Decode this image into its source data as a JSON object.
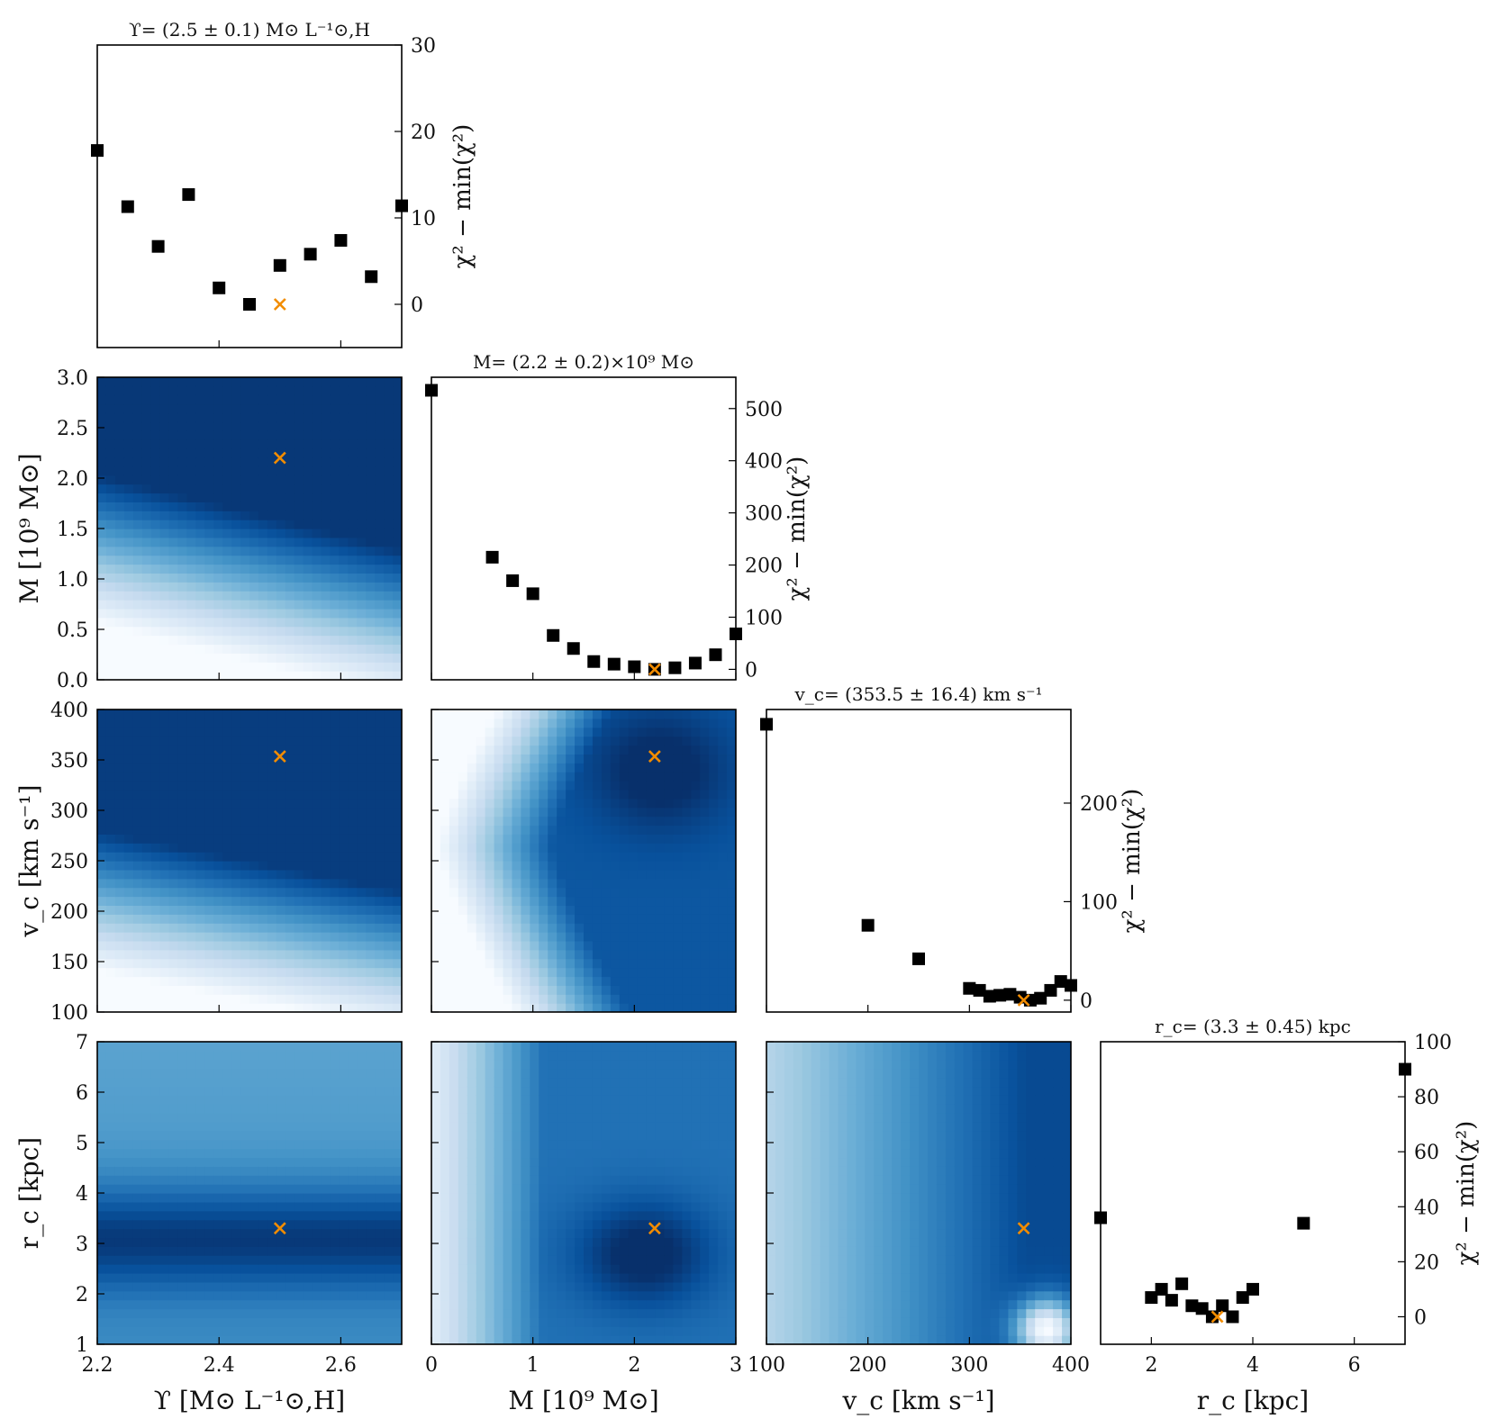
{
  "chart_data": {
    "type": "corner-plot",
    "colors": {
      "marker": "#000000",
      "best_fit": "#f28c00",
      "contour_dark": "#08306b",
      "contour_light": "#f7fbff"
    },
    "params": [
      {
        "id": "ups",
        "label": "ϒ [M⊙ L⁻¹⊙,H]",
        "range": [
          2.2,
          2.7
        ],
        "ticks": [
          2.2,
          2.4,
          2.6
        ],
        "best": 2.5
      },
      {
        "id": "M",
        "label": "M [10⁹ M⊙]",
        "range": [
          0,
          3
        ],
        "ticks": [
          0,
          1,
          2,
          3
        ],
        "yticks": [
          0.0,
          0.5,
          1.0,
          1.5,
          2.0,
          2.5,
          3.0
        ],
        "best": 2.2
      },
      {
        "id": "vc",
        "label": "v_c [km s⁻¹]",
        "range": [
          100,
          400
        ],
        "ticks": [
          100,
          200,
          300,
          400
        ],
        "yticks": [
          100,
          150,
          200,
          250,
          300,
          350,
          400
        ],
        "best": 353.5
      },
      {
        "id": "rc",
        "label": "r_c [kpc]",
        "range": [
          1,
          7
        ],
        "ticks": [
          2,
          4,
          6
        ],
        "yticks": [
          1,
          2,
          3,
          4,
          5,
          6,
          7
        ],
        "best": 3.3
      }
    ],
    "diagonals": [
      {
        "title": "ϒ= (2.5 ± 0.1) M⊙ L⁻¹⊙,H",
        "ylabel": "χ² − min(χ²)",
        "ylim": [
          -5,
          30
        ],
        "yticks": [
          0,
          10,
          20,
          30
        ],
        "x": [
          2.2,
          2.25,
          2.3,
          2.35,
          2.4,
          2.45,
          2.5,
          2.55,
          2.6,
          2.65,
          2.7
        ],
        "y": [
          17.8,
          11.3,
          6.7,
          12.7,
          1.9,
          0.0,
          4.5,
          5.8,
          7.4,
          3.2,
          11.4
        ]
      },
      {
        "title": "M= (2.2 ± 0.2)×10⁹ M⊙",
        "ylabel": "χ² − min(χ²)",
        "ylim": [
          -20,
          560
        ],
        "yticks": [
          0,
          100,
          200,
          300,
          400,
          500
        ],
        "x": [
          0,
          0.6,
          0.8,
          1.0,
          1.2,
          1.4,
          1.6,
          1.8,
          2.0,
          2.2,
          2.4,
          2.6,
          2.8,
          3.0
        ],
        "y": [
          535,
          215,
          170,
          145,
          65,
          40,
          15,
          10,
          5,
          0,
          3,
          12,
          28,
          68
        ]
      },
      {
        "title": "v_c= (353.5 ± 16.4) km s⁻¹",
        "ylabel": "χ² − min(χ²)",
        "ylim": [
          -12,
          295
        ],
        "yticks": [
          0,
          100,
          200
        ],
        "x": [
          100,
          200,
          250,
          300,
          310,
          320,
          330,
          340,
          350,
          360,
          370,
          380,
          390,
          400
        ],
        "y": [
          280,
          76,
          42,
          12,
          10,
          4,
          5,
          6,
          3,
          0,
          2,
          10,
          19,
          15
        ]
      },
      {
        "title": "r_c= (3.3 ± 0.45) kpc",
        "ylabel": "χ² − min(χ²)",
        "ylim": [
          -10,
          100
        ],
        "yticks": [
          0,
          20,
          40,
          60,
          80,
          100
        ],
        "x": [
          1,
          2,
          2.2,
          2.4,
          2.6,
          2.8,
          3.0,
          3.2,
          3.4,
          3.6,
          3.8,
          4.0,
          5.0,
          7.0
        ],
        "y": [
          36,
          7,
          10,
          6,
          12,
          4,
          3,
          0,
          4,
          0,
          7,
          10,
          34,
          90
        ]
      }
    ]
  }
}
